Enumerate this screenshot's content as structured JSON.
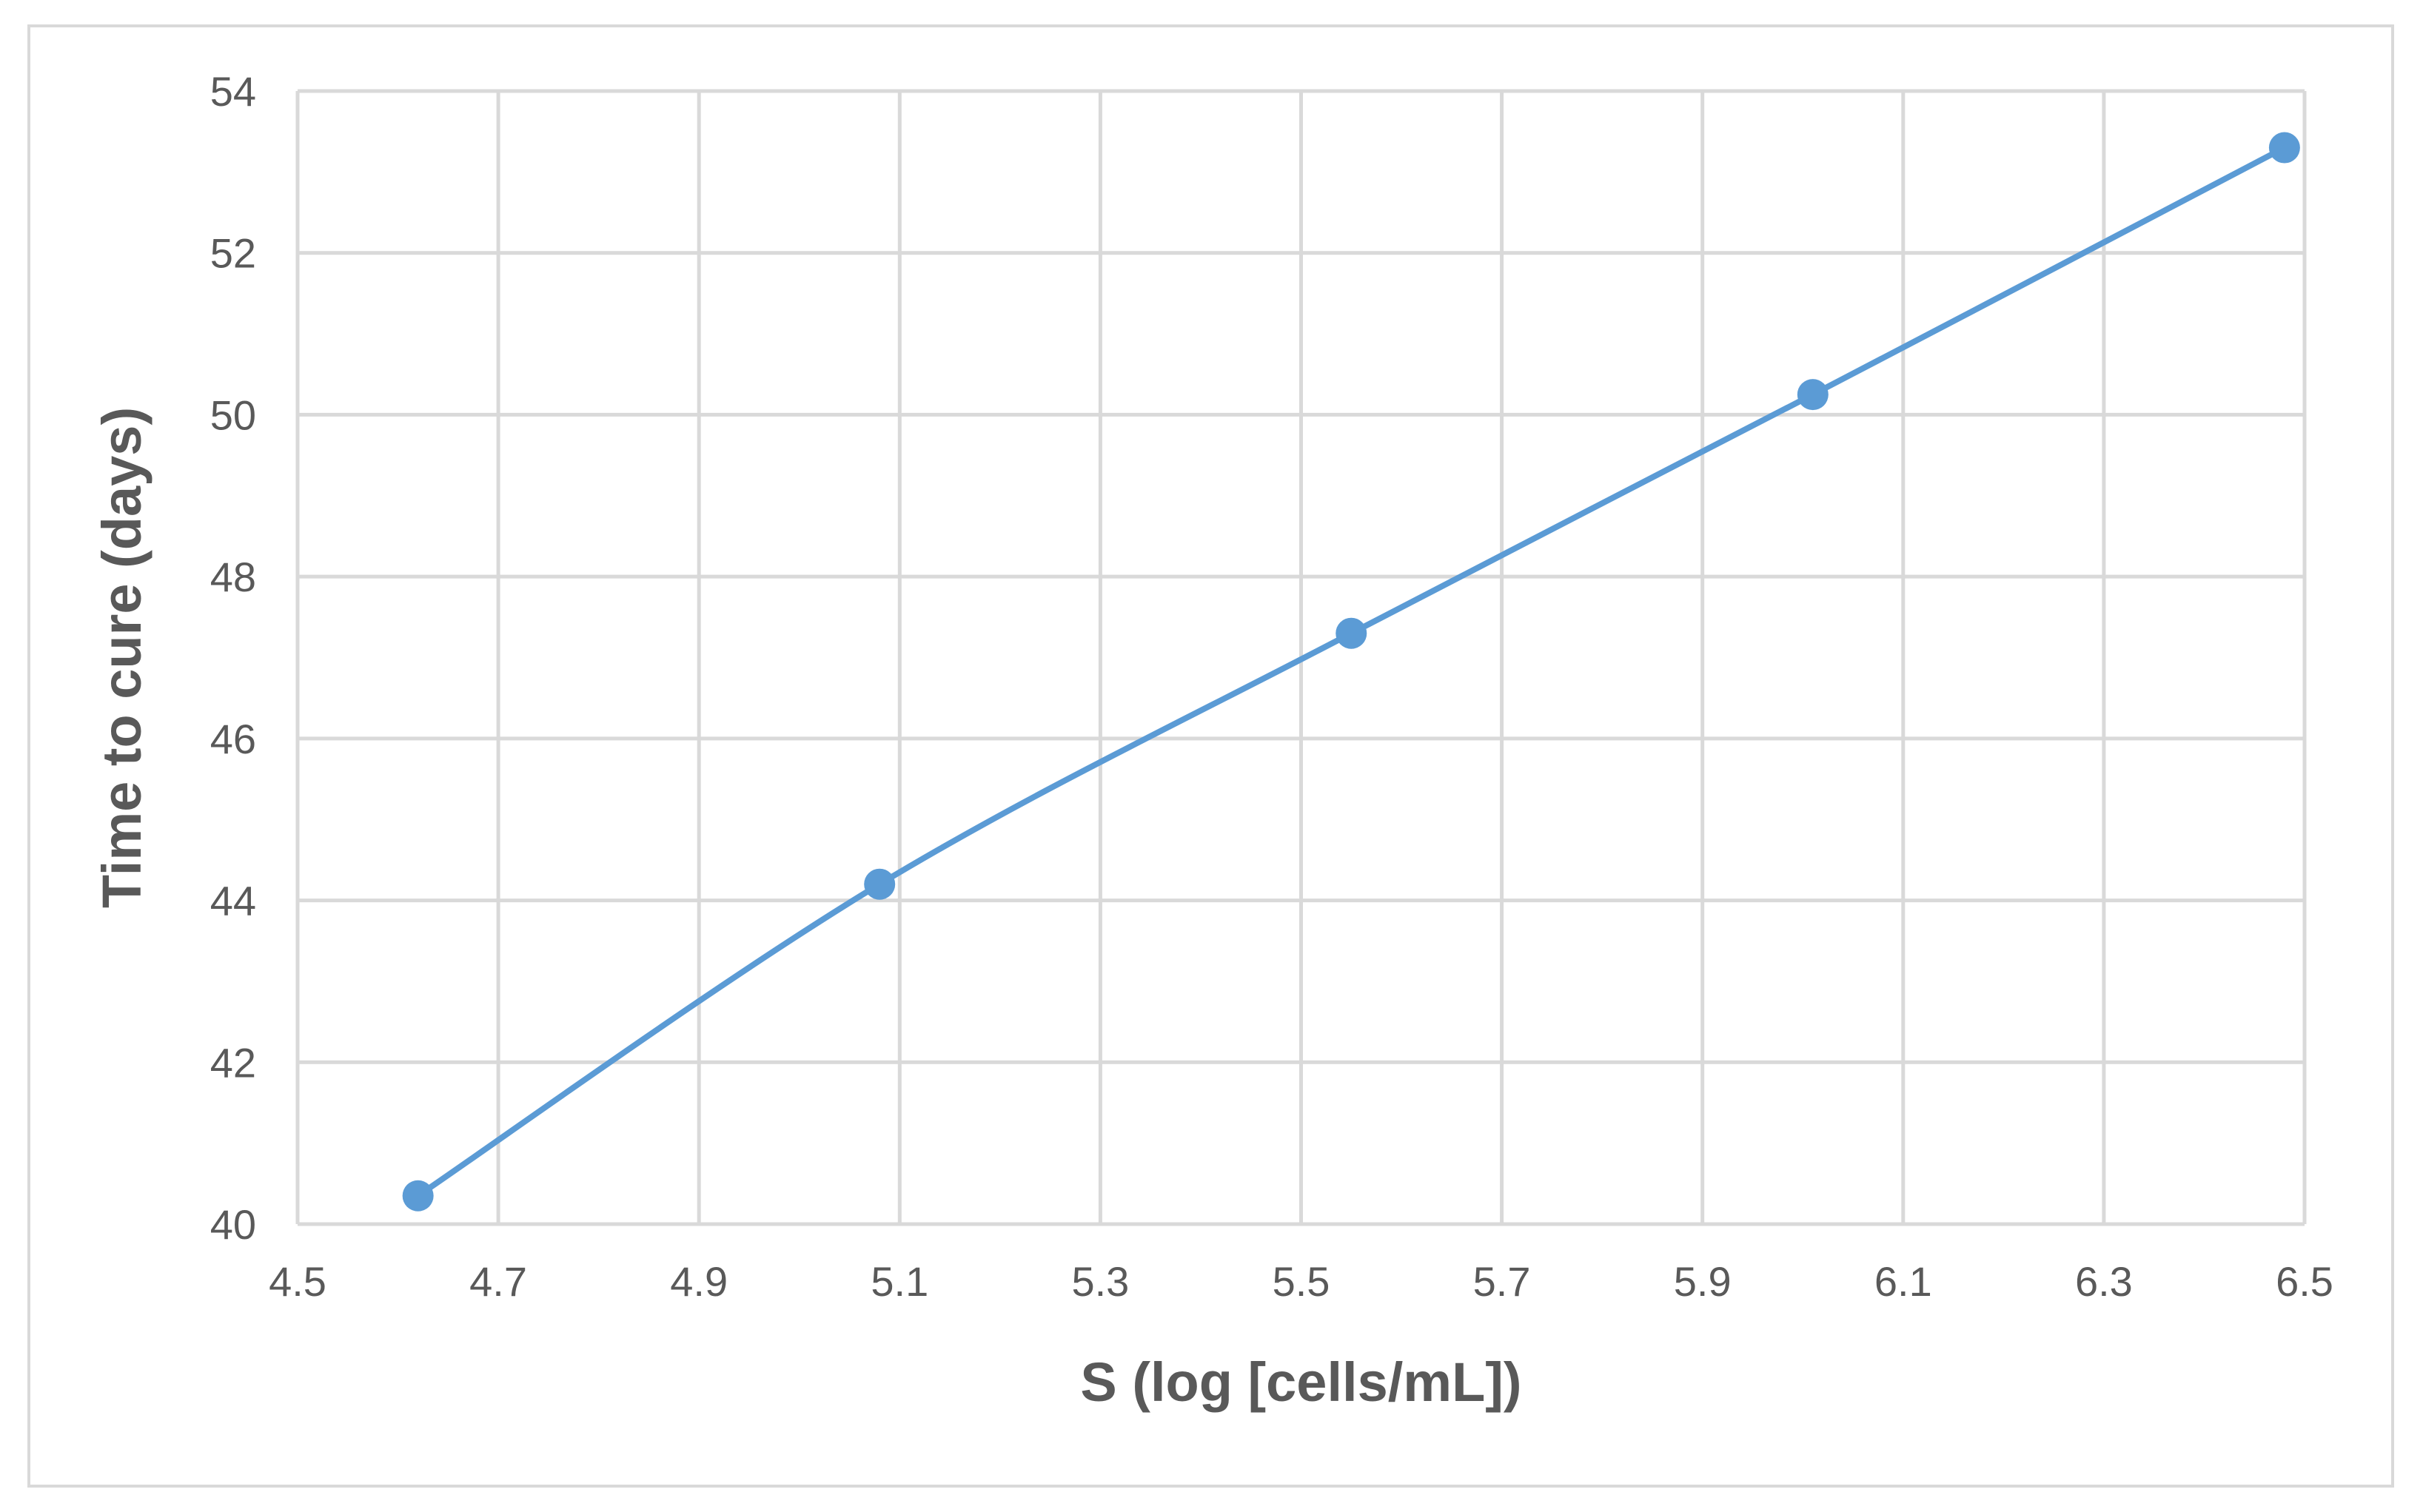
{
  "chart_data": {
    "type": "line",
    "title": "",
    "xlabel": "S (log [cells/mL])",
    "ylabel": "Time to cure (days)",
    "xlim": [
      4.5,
      6.5
    ],
    "ylim": [
      40,
      54
    ],
    "x_ticks": [
      "4.5",
      "4.7",
      "4.9",
      "5.1",
      "5.3",
      "5.5",
      "5.7",
      "5.9",
      "6.1",
      "6.3",
      "6.5"
    ],
    "y_ticks": [
      "40",
      "42",
      "44",
      "46",
      "48",
      "50",
      "52",
      "54"
    ],
    "grid": true,
    "legend": "none",
    "series_color": "#5b9bd5",
    "smooth": true,
    "markers": true,
    "series": [
      {
        "x": [
          4.62,
          5.08,
          5.55,
          6.01,
          6.48
        ],
        "y": [
          40.35,
          44.2,
          47.3,
          50.25,
          53.3
        ]
      }
    ]
  }
}
